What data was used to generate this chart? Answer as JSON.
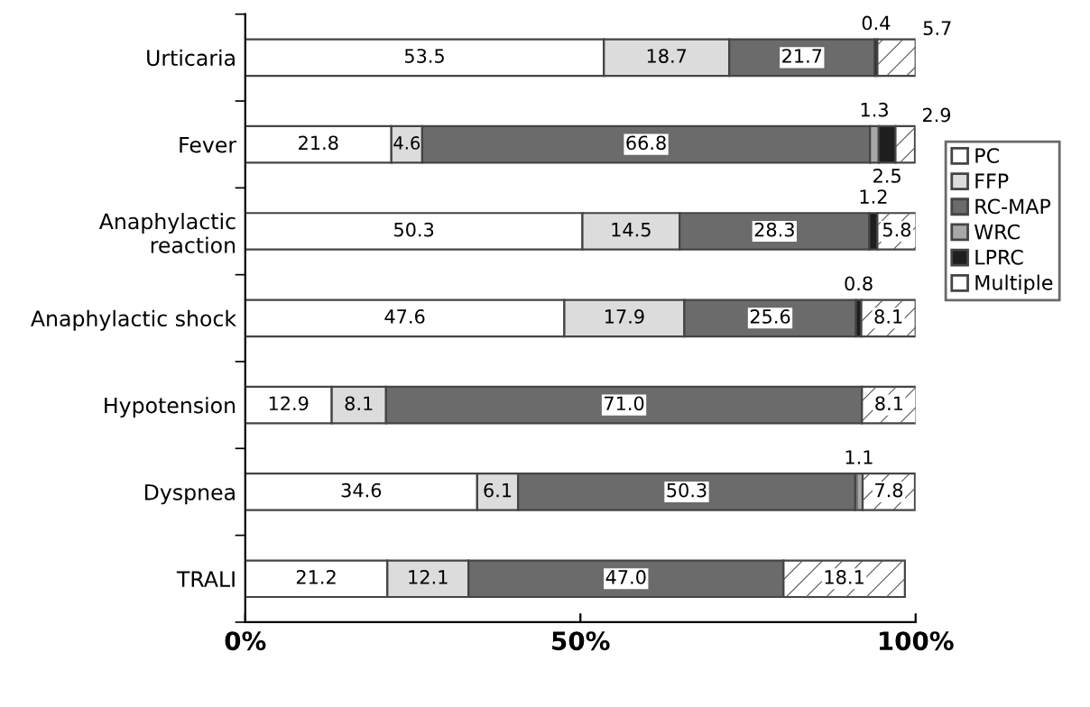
{
  "chart_data": {
    "type": "bar",
    "orientation": "horizontal",
    "stacked": true,
    "legend": "right",
    "grid": false,
    "categories": [
      "Urticaria",
      "Fever",
      "Anaphylactic\nreaction",
      "Anaphylactic shock",
      "Hypotension",
      "Dyspnea",
      "TRALI"
    ],
    "xlim": [
      0,
      100
    ],
    "xticks": [
      {
        "value": 0,
        "label": "0%"
      },
      {
        "value": 50,
        "label": "50%"
      },
      {
        "value": 100,
        "label": "100%"
      }
    ],
    "series": [
      {
        "name": "PC",
        "color": "#ffffff",
        "values": [
          53.5,
          21.8,
          50.3,
          47.6,
          12.9,
          34.6,
          21.2
        ],
        "value_labels": [
          "53.5",
          "21.8",
          "50.3",
          "47.6",
          "12.9",
          "34.6",
          "21.2"
        ]
      },
      {
        "name": "FFP",
        "color": "#dcdcdc",
        "values": [
          18.7,
          4.6,
          14.5,
          17.9,
          8.1,
          6.1,
          12.1
        ],
        "value_labels": [
          "18.7",
          "4.6",
          "14.5",
          "17.9",
          "8.1",
          "6.1",
          "12.1"
        ]
      },
      {
        "name": "RC-MAP",
        "color": "#6b6b6b",
        "values": [
          21.7,
          66.8,
          28.3,
          25.6,
          71.0,
          50.3,
          47.0
        ],
        "value_labels": [
          "21.7",
          "66.8",
          "28.3",
          "25.6",
          "71.0",
          "50.3",
          "47.0"
        ]
      },
      {
        "name": "WRC",
        "color": "#a8a8a8",
        "values": [
          0,
          1.3,
          0,
          0,
          0,
          1.1,
          0
        ],
        "value_labels": [
          null,
          "1.3",
          null,
          null,
          null,
          "1.1",
          null
        ]
      },
      {
        "name": "LPRC",
        "color": "#1e1e1e",
        "values": [
          0.4,
          2.5,
          1.2,
          0.8,
          0,
          0,
          0
        ],
        "value_labels": [
          "0.4",
          "2.5",
          "1.2",
          "0.8",
          null,
          null,
          null
        ]
      },
      {
        "name": "Multiple",
        "color": "#ffffff",
        "values": [
          5.7,
          2.9,
          5.8,
          8.1,
          8.1,
          7.8,
          18.1
        ],
        "value_labels": [
          "5.7",
          "2.9",
          "5.8",
          "8.1",
          "8.1",
          "7.8",
          "18.1"
        ]
      }
    ]
  }
}
